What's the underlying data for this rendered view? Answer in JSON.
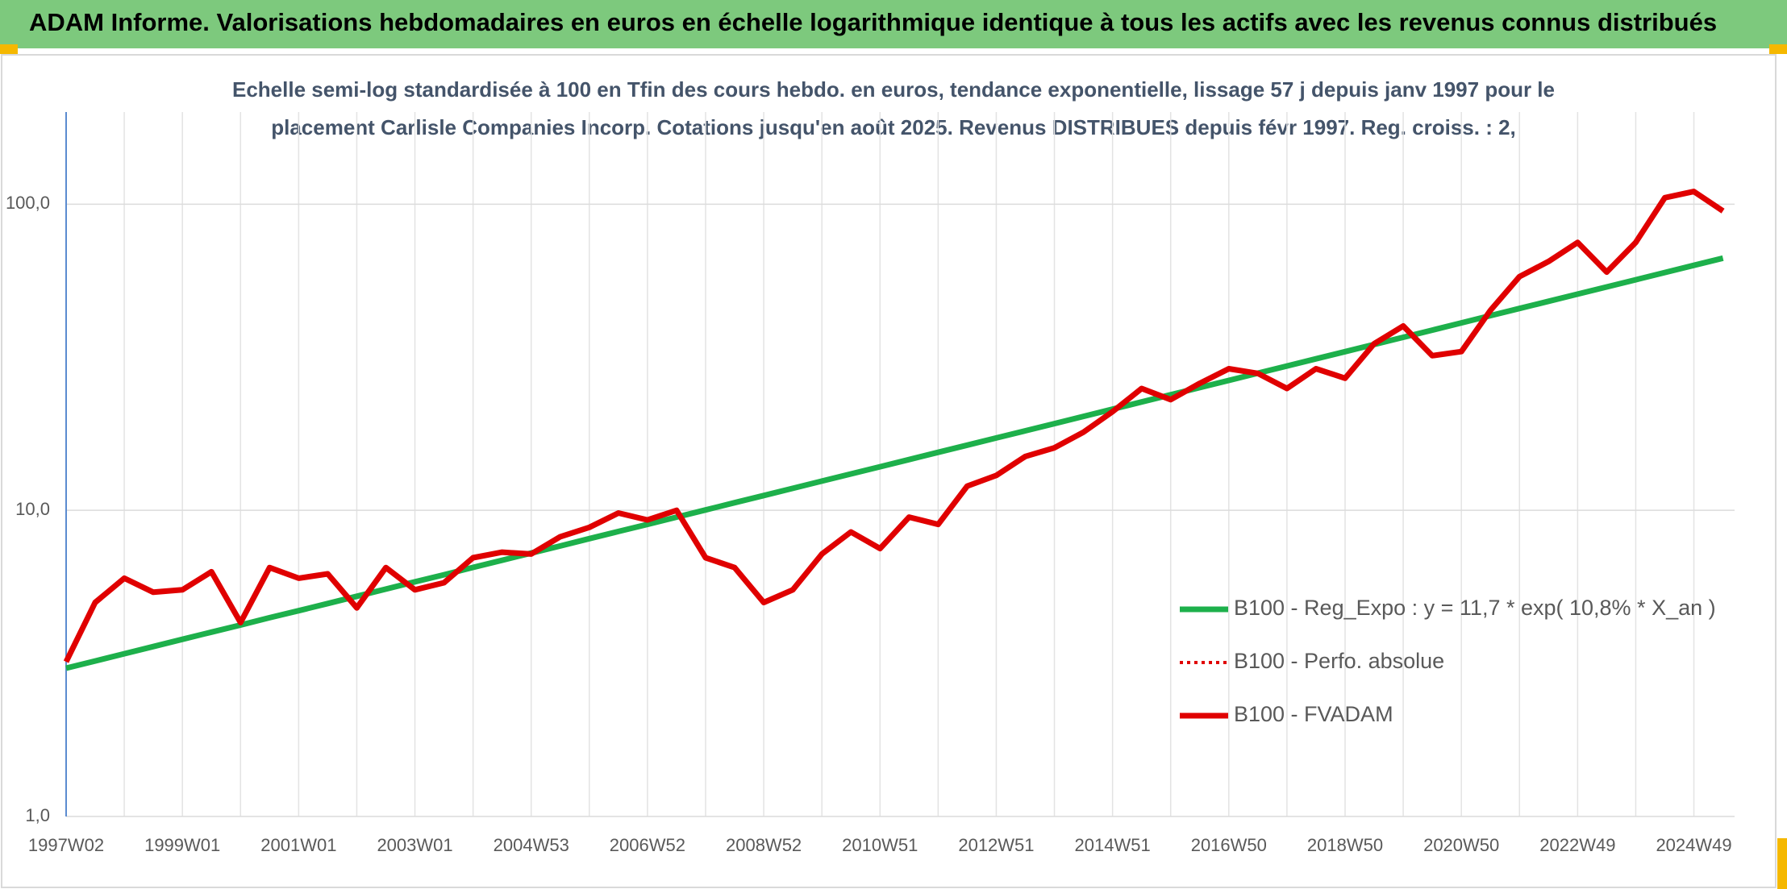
{
  "header": {
    "title": "ADAM Informe. Valorisations hebdomadaires en euros en échelle logarithmique identique à tous les actifs avec les revenus connus distribués"
  },
  "chart_data": {
    "type": "line",
    "title": [
      "Echelle semi-log standardisée à 100 en Tfin des cours hebdo. en euros, tendance exponentielle, lissage 57 j depuis janv 1997 pour le",
      "placement Carlisle Companies Incorp. Cotations jusqu'en août 2025. Revenus DISTRIBUES depuis févr 1997. Reg. croiss. : 2,"
    ],
    "categories": [
      "1997W02",
      null,
      null,
      null,
      "1999W01",
      null,
      null,
      null,
      "2001W01",
      null,
      null,
      null,
      "2003W01",
      null,
      null,
      null,
      "2004W53",
      null,
      null,
      null,
      "2006W52",
      null,
      null,
      null,
      "2008W52",
      null,
      null,
      null,
      "2010W51",
      null,
      null,
      null,
      "2012W51",
      null,
      null,
      null,
      "2014W51",
      null,
      null,
      null,
      "2016W50",
      null,
      null,
      null,
      "2018W50",
      null,
      null,
      null,
      "2020W50",
      null,
      null,
      null,
      "2022W49",
      null,
      null,
      null,
      "2024W49",
      null
    ],
    "log_scale": true,
    "grid": true,
    "legend": "lower right",
    "ylim": [
      1,
      200
    ],
    "yticks": [
      {
        "value": 1,
        "label": "1,0"
      },
      {
        "value": 10,
        "label": "10,0"
      },
      {
        "value": 100,
        "label": "100,0"
      }
    ],
    "series": [
      {
        "name": "B100 - Reg_Expo : y = 11,7 * exp( 10,8% *  X_an )",
        "color": "#1db04b",
        "dash": "solid",
        "values": [
          3.05,
          3.22,
          3.4,
          3.59,
          3.79,
          4.0,
          4.22,
          4.46,
          4.7,
          4.96,
          5.24,
          5.53,
          5.84,
          6.16,
          6.51,
          6.87,
          7.25,
          7.65,
          8.08,
          8.53,
          9.0,
          9.5,
          10.03,
          10.59,
          11.18,
          11.8,
          12.46,
          13.15,
          13.88,
          14.65,
          15.47,
          16.33,
          17.23,
          18.19,
          19.2,
          20.27,
          21.4,
          22.59,
          23.85,
          25.17,
          26.57,
          28.05,
          29.61,
          31.25,
          32.98,
          34.81,
          36.75,
          38.79,
          40.96,
          43.24,
          45.64,
          48.18,
          50.85,
          53.68,
          56.66,
          59.81,
          63.13,
          66.64
        ]
      },
      {
        "name": "B100 - Perfo. absolue",
        "color": "#e00000",
        "dash": "dotted",
        "values": [
          null,
          null,
          null,
          null,
          null,
          null,
          null,
          null,
          null,
          null,
          null,
          null,
          null,
          null,
          null,
          null,
          null,
          null,
          null,
          null,
          null,
          null,
          null,
          null,
          null,
          null,
          null,
          null,
          null,
          null,
          null,
          null,
          null,
          null,
          null,
          null,
          null,
          null,
          null,
          null,
          null,
          null,
          null,
          null,
          null,
          null,
          null,
          null,
          null,
          null,
          null,
          null,
          null,
          null,
          null,
          null,
          null,
          null
        ]
      },
      {
        "name": "B100 - FVADAM",
        "color": "#e00000",
        "dash": "solid",
        "values": [
          3.2,
          5.0,
          6.0,
          5.4,
          5.5,
          6.3,
          4.3,
          6.5,
          6.0,
          6.2,
          4.8,
          6.5,
          5.5,
          5.8,
          7.0,
          7.3,
          7.2,
          8.2,
          8.8,
          9.8,
          9.3,
          10.0,
          7.0,
          6.5,
          5.0,
          5.5,
          7.2,
          8.5,
          7.5,
          9.5,
          9.0,
          12.0,
          13.0,
          15.0,
          16.0,
          18.0,
          21.0,
          25.0,
          23.0,
          26.0,
          29.0,
          28.0,
          25.0,
          29.0,
          27.0,
          35.0,
          40.0,
          32.0,
          33.0,
          45.0,
          58.0,
          65.0,
          75.0,
          60.0,
          75.0,
          105.0,
          110.0,
          95.0
        ]
      }
    ]
  }
}
